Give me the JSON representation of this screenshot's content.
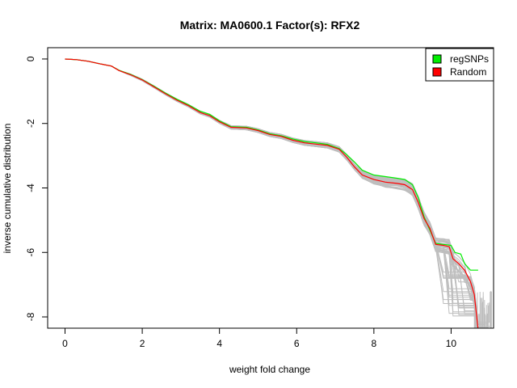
{
  "chart_data": {
    "type": "line",
    "title": "Matrix: MA0600.1 Factor(s): RFX2",
    "xlabel": "weight fold change",
    "ylabel": "inverse cumulative distribution",
    "xlim": [
      -0.45,
      11.1
    ],
    "ylim": [
      -8.35,
      0.35
    ],
    "x_ticks": [
      0,
      2,
      4,
      6,
      8,
      10
    ],
    "y_ticks": [
      0,
      -2,
      -4,
      -6,
      -8
    ],
    "legend_position": "top-right",
    "legend": [
      {
        "label": "regSNPs",
        "color": "#00ee00"
      },
      {
        "label": "Random",
        "color": "#ff0000"
      }
    ],
    "background_series_color": "#bebebe",
    "series": [
      {
        "name": "regSNPs",
        "color": "#00ee00",
        "points": [
          [
            0,
            0
          ],
          [
            0.3,
            -0.02
          ],
          [
            0.6,
            -0.07
          ],
          [
            0.9,
            -0.15
          ],
          [
            1.2,
            -0.22
          ],
          [
            1.4,
            -0.35
          ],
          [
            1.7,
            -0.48
          ],
          [
            2.0,
            -0.64
          ],
          [
            2.3,
            -0.84
          ],
          [
            2.6,
            -1.06
          ],
          [
            2.9,
            -1.25
          ],
          [
            3.2,
            -1.42
          ],
          [
            3.5,
            -1.62
          ],
          [
            3.75,
            -1.72
          ],
          [
            4.0,
            -1.92
          ],
          [
            4.3,
            -2.1
          ],
          [
            4.7,
            -2.12
          ],
          [
            5.0,
            -2.2
          ],
          [
            5.3,
            -2.32
          ],
          [
            5.6,
            -2.38
          ],
          [
            5.9,
            -2.48
          ],
          [
            6.2,
            -2.56
          ],
          [
            6.5,
            -2.6
          ],
          [
            6.8,
            -2.65
          ],
          [
            7.1,
            -2.78
          ],
          [
            7.3,
            -2.97
          ],
          [
            7.5,
            -3.2
          ],
          [
            7.7,
            -3.45
          ],
          [
            8.0,
            -3.6
          ],
          [
            8.3,
            -3.65
          ],
          [
            8.6,
            -3.7
          ],
          [
            8.8,
            -3.74
          ],
          [
            9.0,
            -3.9
          ],
          [
            9.15,
            -4.3
          ],
          [
            9.3,
            -4.9
          ],
          [
            9.45,
            -5.3
          ],
          [
            9.6,
            -5.72
          ],
          [
            9.8,
            -5.75
          ],
          [
            10.0,
            -5.78
          ],
          [
            10.1,
            -6.0
          ],
          [
            10.25,
            -6.05
          ],
          [
            10.35,
            -6.35
          ],
          [
            10.5,
            -6.55
          ],
          [
            10.7,
            -6.55
          ]
        ]
      },
      {
        "name": "Random",
        "color": "#ff0000",
        "points": [
          [
            0,
            0
          ],
          [
            0.3,
            -0.02
          ],
          [
            0.6,
            -0.07
          ],
          [
            0.9,
            -0.15
          ],
          [
            1.2,
            -0.22
          ],
          [
            1.4,
            -0.36
          ],
          [
            1.7,
            -0.49
          ],
          [
            2.0,
            -0.65
          ],
          [
            2.3,
            -0.86
          ],
          [
            2.6,
            -1.08
          ],
          [
            2.9,
            -1.28
          ],
          [
            3.2,
            -1.45
          ],
          [
            3.5,
            -1.66
          ],
          [
            3.75,
            -1.76
          ],
          [
            4.0,
            -1.95
          ],
          [
            4.3,
            -2.12
          ],
          [
            4.7,
            -2.14
          ],
          [
            5.0,
            -2.22
          ],
          [
            5.3,
            -2.34
          ],
          [
            5.6,
            -2.4
          ],
          [
            5.9,
            -2.52
          ],
          [
            6.2,
            -2.6
          ],
          [
            6.5,
            -2.64
          ],
          [
            6.8,
            -2.68
          ],
          [
            7.1,
            -2.8
          ],
          [
            7.3,
            -3.05
          ],
          [
            7.5,
            -3.35
          ],
          [
            7.7,
            -3.6
          ],
          [
            8.0,
            -3.74
          ],
          [
            8.3,
            -3.82
          ],
          [
            8.6,
            -3.86
          ],
          [
            8.8,
            -3.9
          ],
          [
            9.0,
            -4.05
          ],
          [
            9.15,
            -4.45
          ],
          [
            9.3,
            -4.95
          ],
          [
            9.45,
            -5.25
          ],
          [
            9.6,
            -5.75
          ],
          [
            9.8,
            -5.78
          ],
          [
            9.95,
            -5.82
          ],
          [
            10.05,
            -6.2
          ],
          [
            10.2,
            -6.35
          ],
          [
            10.35,
            -6.55
          ],
          [
            10.5,
            -6.9
          ],
          [
            10.6,
            -7.3
          ],
          [
            10.7,
            -8.4
          ]
        ]
      }
    ],
    "background_series_count": 45
  }
}
